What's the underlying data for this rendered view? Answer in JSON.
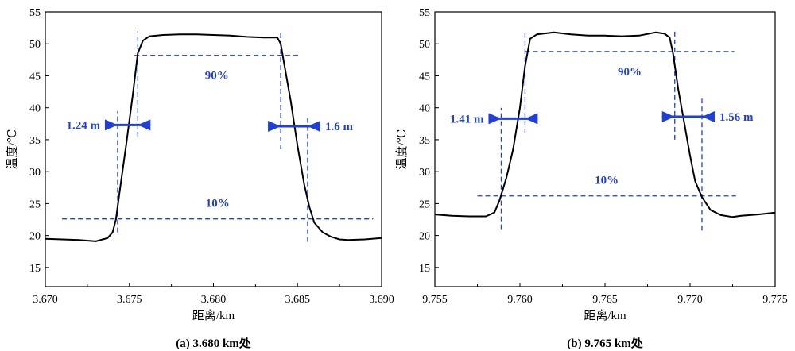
{
  "chart_data": [
    {
      "type": "line",
      "caption": "(a) 3.680 km处",
      "xlabel": "距离/km",
      "ylabel": "温度/℃",
      "xlim": [
        3.67,
        3.69
      ],
      "ylim": [
        12,
        55
      ],
      "xticks": [
        3.67,
        3.675,
        3.68,
        3.685,
        3.69
      ],
      "xtick_labels": [
        "3.670",
        "3.675",
        "3.680",
        "3.685",
        "3.690"
      ],
      "yticks": [
        15,
        20,
        25,
        30,
        35,
        40,
        45,
        50,
        55
      ],
      "ytick_labels": [
        "15",
        "20",
        "25",
        "30",
        "35",
        "40",
        "45",
        "50",
        "55"
      ],
      "series": [
        {
          "color": "#000000",
          "x": [
            3.67,
            3.671,
            3.672,
            3.673,
            3.6737,
            3.674,
            3.6742,
            3.6744,
            3.6748,
            3.6752,
            3.6755,
            3.6758,
            3.6762,
            3.677,
            3.678,
            3.679,
            3.68,
            3.681,
            3.682,
            3.683,
            3.6838,
            3.684,
            3.6842,
            3.6846,
            3.685,
            3.6854,
            3.6857,
            3.686,
            3.6865,
            3.687,
            3.6875,
            3.688,
            3.689,
            3.69
          ],
          "y": [
            19.5,
            19.4,
            19.3,
            19.1,
            19.6,
            20.5,
            22.5,
            26.5,
            34.0,
            42.0,
            48.5,
            50.5,
            51.2,
            51.4,
            51.5,
            51.5,
            51.4,
            51.3,
            51.1,
            51.0,
            51.0,
            50.0,
            47.0,
            41.0,
            34.0,
            28.0,
            24.5,
            22.0,
            20.5,
            19.8,
            19.4,
            19.3,
            19.4,
            19.6
          ]
        }
      ],
      "guides": {
        "h_lines": [
          {
            "y": 48.2,
            "x_from": 3.6753,
            "x_to": 3.6851,
            "label": "90%"
          },
          {
            "y": 22.6,
            "x_from": 3.671,
            "x_to": 3.6895,
            "label": "10%"
          }
        ],
        "v_lines": [
          {
            "x": 3.6743,
            "y_from": 20.5,
            "y_to": 39.5
          },
          {
            "x": 3.6755,
            "y_from": 35.5,
            "y_to": 52.0
          },
          {
            "x": 3.684,
            "y_from": 33.5,
            "y_to": 52.0
          },
          {
            "x": 3.6856,
            "y_from": 19.0,
            "y_to": 38.5
          }
        ]
      },
      "widths": [
        {
          "label": "1.24 m",
          "x_from": 3.6743,
          "x_to": 3.6755,
          "y": 37.3,
          "label_side": "left"
        },
        {
          "label": "1.6 m",
          "x_from": 3.684,
          "x_to": 3.6856,
          "y": 37.1,
          "label_side": "right"
        }
      ],
      "grid": false
    },
    {
      "type": "line",
      "caption": "(b) 9.765 km处",
      "xlabel": "距离/km",
      "ylabel": "温度/℃",
      "xlim": [
        9.755,
        9.775
      ],
      "ylim": [
        12,
        55
      ],
      "xticks": [
        9.755,
        9.76,
        9.765,
        9.77,
        9.775
      ],
      "xtick_labels": [
        "9.755",
        "9.760",
        "9.765",
        "9.770",
        "9.775"
      ],
      "yticks": [
        15,
        20,
        25,
        30,
        35,
        40,
        45,
        50,
        55
      ],
      "ytick_labels": [
        "15",
        "20",
        "25",
        "30",
        "35",
        "40",
        "45",
        "50",
        "55"
      ],
      "series": [
        {
          "color": "#000000",
          "x": [
            9.755,
            9.756,
            9.757,
            9.758,
            9.7585,
            9.7588,
            9.7592,
            9.7596,
            9.76,
            9.7603,
            9.7606,
            9.761,
            9.762,
            9.763,
            9.764,
            9.765,
            9.766,
            9.767,
            9.768,
            9.7685,
            9.7688,
            9.769,
            9.7693,
            9.7697,
            9.77,
            9.7703,
            9.7707,
            9.7712,
            9.7718,
            9.7725,
            9.773,
            9.774,
            9.775
          ],
          "y": [
            23.3,
            23.1,
            23.0,
            23.0,
            23.6,
            25.5,
            29.0,
            33.5,
            40.0,
            46.5,
            50.8,
            51.5,
            51.8,
            51.5,
            51.3,
            51.3,
            51.2,
            51.3,
            51.8,
            51.6,
            51.0,
            48.5,
            43.0,
            37.0,
            32.5,
            28.5,
            26.0,
            24.0,
            23.2,
            22.9,
            23.1,
            23.3,
            23.6
          ]
        }
      ],
      "guides": {
        "h_lines": [
          {
            "y": 48.8,
            "x_from": 9.7603,
            "x_to": 9.7726,
            "label": "90%"
          },
          {
            "y": 26.2,
            "x_from": 9.7575,
            "x_to": 9.7727,
            "label": "10%"
          }
        ],
        "v_lines": [
          {
            "x": 9.7589,
            "y_from": 21.0,
            "y_to": 40.0
          },
          {
            "x": 9.7603,
            "y_from": 36.0,
            "y_to": 52.0
          },
          {
            "x": 9.7691,
            "y_from": 35.0,
            "y_to": 52.0
          },
          {
            "x": 9.7707,
            "y_from": 20.8,
            "y_to": 41.5
          }
        ]
      },
      "widths": [
        {
          "label": "1.41 m",
          "x_from": 9.7589,
          "x_to": 9.7603,
          "y": 38.3,
          "label_side": "left"
        },
        {
          "label": "1.56 m",
          "x_from": 9.7691,
          "x_to": 9.7707,
          "y": 38.6,
          "label_side": "right"
        }
      ],
      "grid": false
    }
  ],
  "colors": {
    "curve": "#000000",
    "annotation": "#1f3fd8",
    "axis": "#000000"
  }
}
